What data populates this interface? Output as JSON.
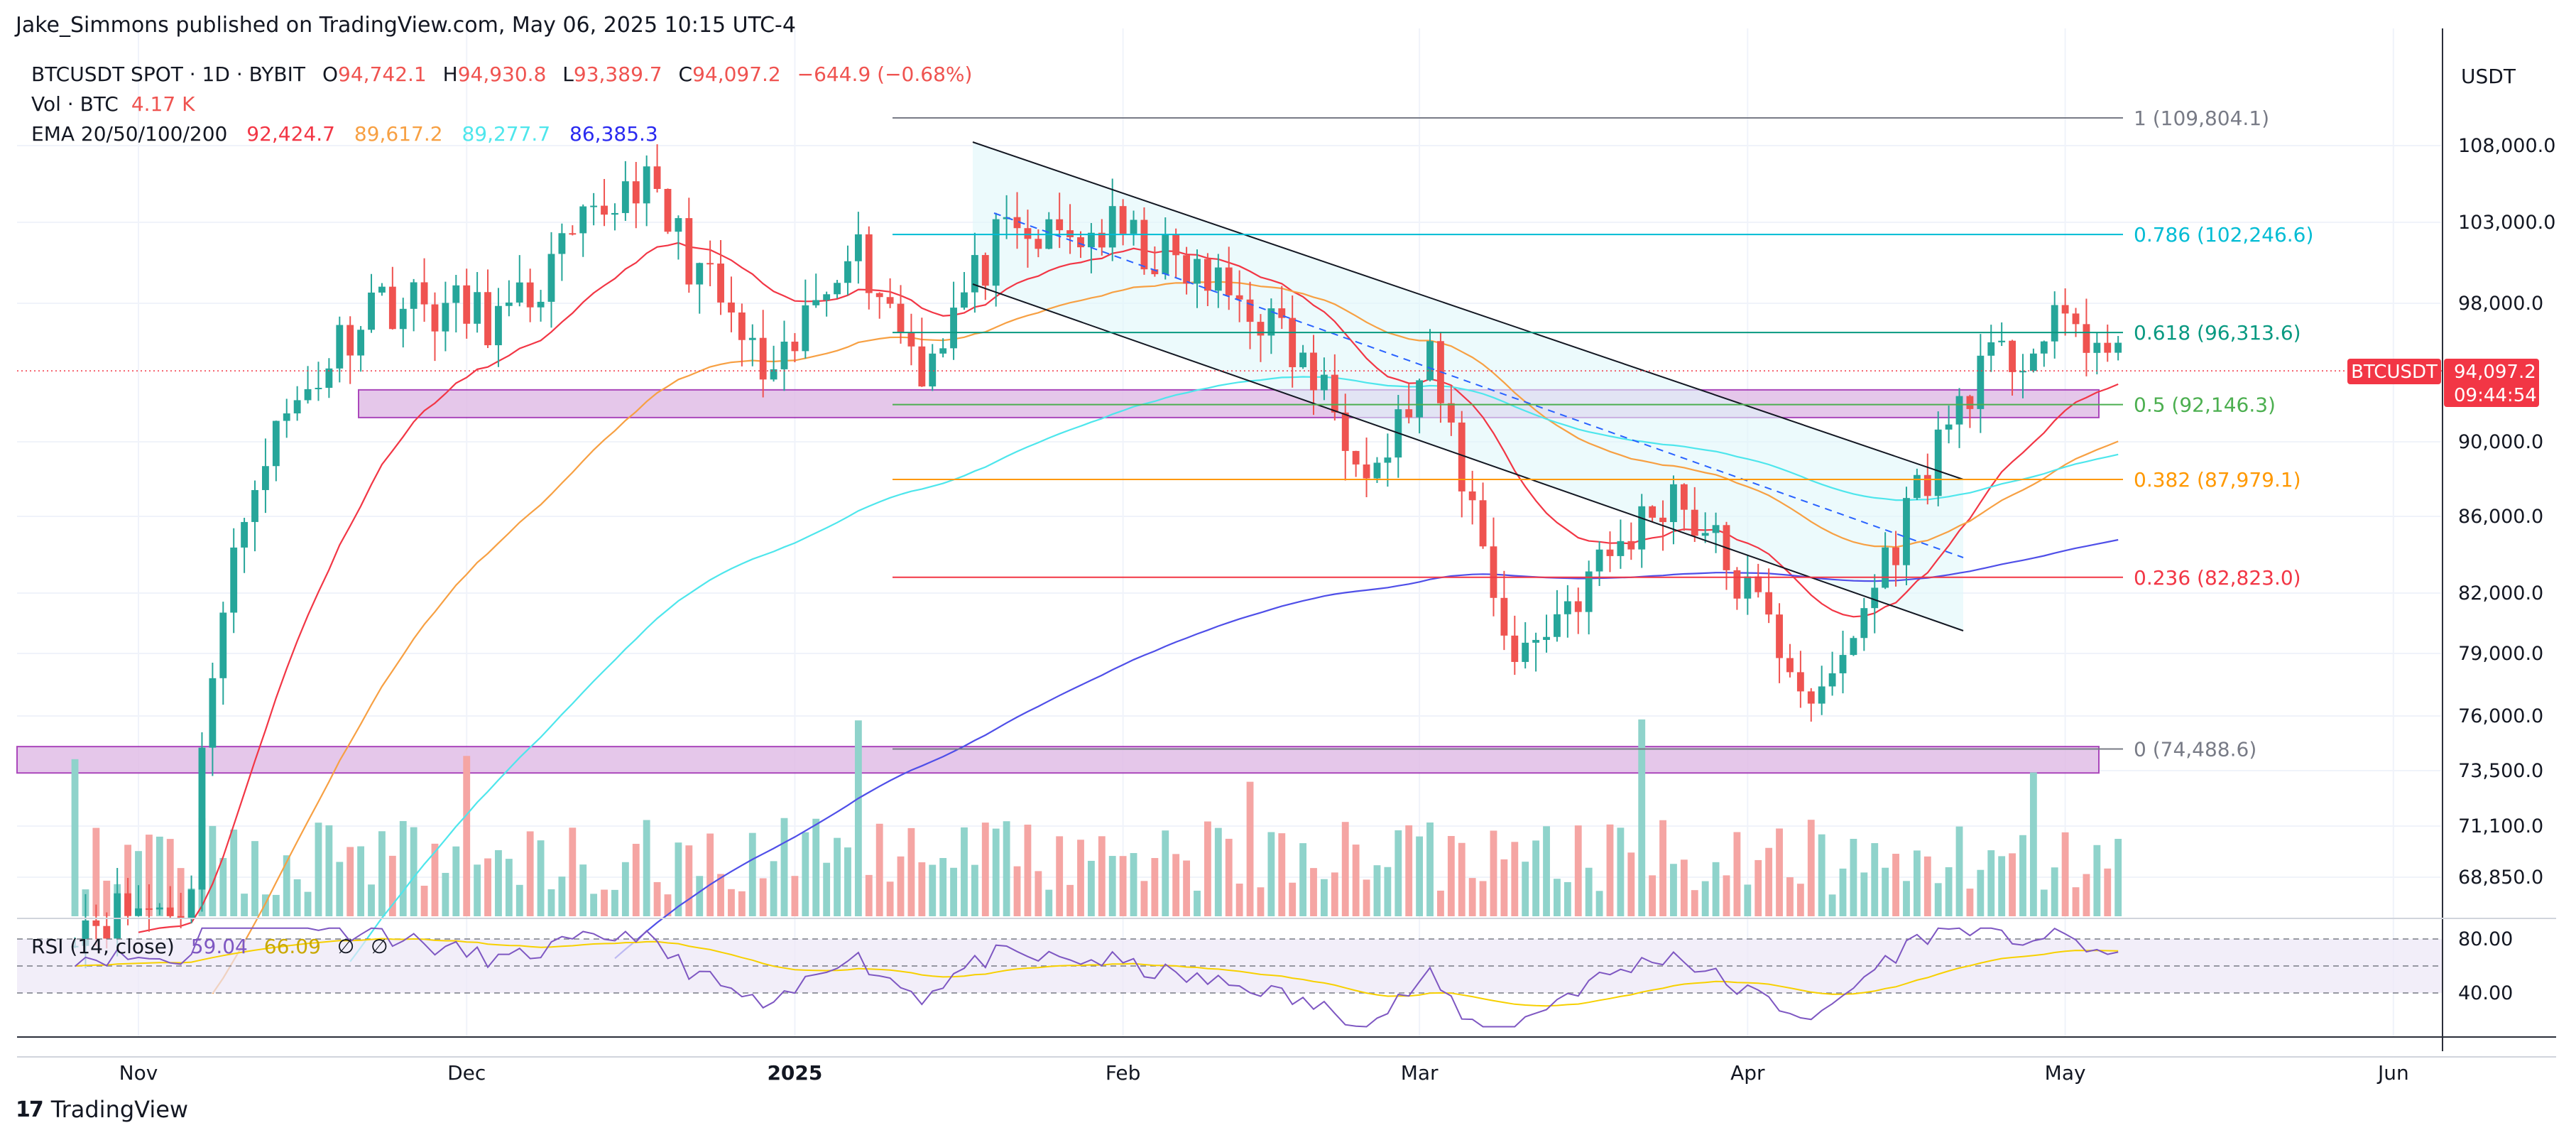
{
  "header": {
    "published_by": "Jake_Simmons published on TradingView.com, May 06, 2025 10:15 UTC-4",
    "symbol_line": "BTCUSDT SPOT · 1D · BYBIT",
    "ohlc": {
      "open_label": "O",
      "open": "94,742.1",
      "high_label": "H",
      "high": "94,930.8",
      "low_label": "L",
      "low": "93,389.7",
      "close_label": "C",
      "close": "94,097.2",
      "change": "−644.9 (−0.68%)"
    },
    "vol_label": "Vol · BTC",
    "vol_value": "4.17 K",
    "ema_label": "EMA 20/50/100/200",
    "ema_values": [
      "92,424.7",
      "89,617.2",
      "89,277.7",
      "86,385.3"
    ]
  },
  "rsi_header": {
    "label": "RSI (14, close)",
    "value1": "59.04",
    "value2": "66.09",
    "na1": "∅",
    "na2": "∅"
  },
  "price_axis": {
    "currency": "USDT"
  },
  "last_price_badge": {
    "symbol": "BTCUSDT",
    "price": "94,097.2",
    "countdown": "09:44:54"
  },
  "footer": {
    "brand": "TradingView",
    "logo_mark": "17"
  },
  "colors": {
    "up": "#26a69a",
    "down": "#ef5350",
    "vol_up": "#8fd3cb",
    "vol_down": "#f5a5a3",
    "ema20": "#f23645",
    "ema50": "#f7a043",
    "ema100": "#4ee6ec",
    "ema200": "#4f4fe8",
    "rsi": "#7e57c2",
    "rsi_ma": "#f7d000",
    "zone": "#e1bee7",
    "zone_border": "#9c27b0"
  },
  "chart_data": {
    "type": "candlestick",
    "symbol": "BTCUSDT",
    "timeframe": "1D",
    "y_ticks": [
      108000,
      103000,
      98000,
      90000,
      86000,
      82000,
      79000,
      76000,
      73500,
      71100,
      68850
    ],
    "y_tick_labels": [
      "108,000.0",
      "103,000.0",
      "98,000.0",
      "90,000.0",
      "86,000.0",
      "82,000.0",
      "79,000.0",
      "76,000.0",
      "73,500.0",
      "71,100.0",
      "68,850.0"
    ],
    "x_labels": [
      "Nov",
      "Dec",
      "2025",
      "Feb",
      "Mar",
      "Apr",
      "May",
      "Jun"
    ],
    "rsi_ticks": [
      "80.00",
      "40.00"
    ],
    "fib_levels": [
      {
        "label": "1 (109,804.1)",
        "value": 109804.1,
        "color": "#787b86"
      },
      {
        "label": "0.786 (102,246.6)",
        "value": 102246.6,
        "color": "#00bcd4"
      },
      {
        "label": "0.618 (96,313.6)",
        "value": 96313.6,
        "color": "#089981"
      },
      {
        "label": "0.5 (92,146.3)",
        "value": 92146.3,
        "color": "#4caf50"
      },
      {
        "label": "0.382 (87,979.1)",
        "value": 87979.1,
        "color": "#ff9800"
      },
      {
        "label": "0.236 (82,823.0)",
        "value": 82823.0,
        "color": "#f23645"
      },
      {
        "label": "0 (74,488.6)",
        "value": 74488.6,
        "color": "#787b86"
      }
    ],
    "support_zones": [
      [
        91400,
        93000
      ],
      [
        73400,
        74600
      ]
    ],
    "last_price": 94097.2,
    "ema_last": {
      "ema20": 92424.7,
      "ema50": 89617.2,
      "ema100": 89277.7,
      "ema200": 86385.3
    },
    "ohlc_anchor": [
      [
        "2024-10-25",
        67000
      ],
      [
        "2024-11-05",
        67800
      ],
      [
        "2024-11-06",
        75500
      ],
      [
        "2024-11-11",
        88700
      ],
      [
        "2024-11-22",
        98400
      ],
      [
        "2024-12-05",
        97000
      ],
      [
        "2024-12-17",
        106000
      ],
      [
        "2024-12-30",
        92800
      ],
      [
        "2025-01-06",
        102200
      ],
      [
        "2025-01-13",
        94500
      ],
      [
        "2025-01-20",
        101500
      ],
      [
        "2025-01-31",
        102400
      ],
      [
        "2025-02-14",
        97500
      ],
      [
        "2025-02-25",
        88700
      ],
      [
        "2025-03-02",
        94200
      ],
      [
        "2025-03-10",
        78600
      ],
      [
        "2025-03-25",
        87500
      ],
      [
        "2025-04-08",
        76300
      ],
      [
        "2025-04-22",
        93500
      ],
      [
        "2025-05-02",
        96900
      ],
      [
        "2025-05-06",
        94097
      ]
    ]
  }
}
